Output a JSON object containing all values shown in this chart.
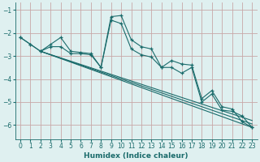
{
  "xlabel": "Humidex (Indice chaleur)",
  "background_color": "#dff0f0",
  "grid_color": "#c8a8a8",
  "line_color": "#1a6b6b",
  "xlim": [
    -0.5,
    23.5
  ],
  "ylim": [
    -6.6,
    -0.7
  ],
  "yticks": [
    -6,
    -5,
    -4,
    -3,
    -2,
    -1
  ],
  "xticks": [
    0,
    1,
    2,
    3,
    4,
    5,
    6,
    7,
    8,
    9,
    10,
    11,
    12,
    13,
    14,
    15,
    16,
    17,
    18,
    19,
    20,
    21,
    22,
    23
  ],
  "series1_x": [
    0,
    1,
    2,
    3,
    4,
    5,
    6,
    7,
    8,
    9,
    10,
    11,
    12,
    13,
    14,
    15,
    16,
    17,
    18,
    19,
    20,
    21,
    22,
    23
  ],
  "series1_y": [
    -2.2,
    -2.5,
    -2.8,
    -2.5,
    -2.2,
    -2.8,
    -2.85,
    -2.9,
    -3.5,
    -1.3,
    -1.25,
    -2.3,
    -2.6,
    -2.7,
    -3.5,
    -3.2,
    -3.35,
    -3.4,
    -4.85,
    -4.5,
    -5.2,
    -5.3,
    -5.85,
    -6.1
  ],
  "series2_x": [
    0,
    1,
    2,
    3,
    4,
    5,
    6,
    7,
    8,
    9,
    10,
    11,
    12,
    13,
    14,
    15,
    16,
    17,
    18,
    19,
    20,
    21,
    22,
    23
  ],
  "series2_y": [
    -2.2,
    -2.5,
    -2.8,
    -2.6,
    -2.6,
    -2.9,
    -2.9,
    -2.95,
    -3.5,
    -1.45,
    -1.6,
    -2.7,
    -2.95,
    -3.05,
    -3.5,
    -3.5,
    -3.75,
    -3.5,
    -5.0,
    -4.65,
    -5.35,
    -5.4,
    -5.6,
    -6.1
  ],
  "trend1_x": [
    2,
    23
  ],
  "trend1_y": [
    -2.8,
    -6.1
  ],
  "trend2_x": [
    2,
    23
  ],
  "trend2_y": [
    -2.8,
    -5.95
  ],
  "trend3_x": [
    2,
    23
  ],
  "trend3_y": [
    -2.8,
    -5.8
  ]
}
